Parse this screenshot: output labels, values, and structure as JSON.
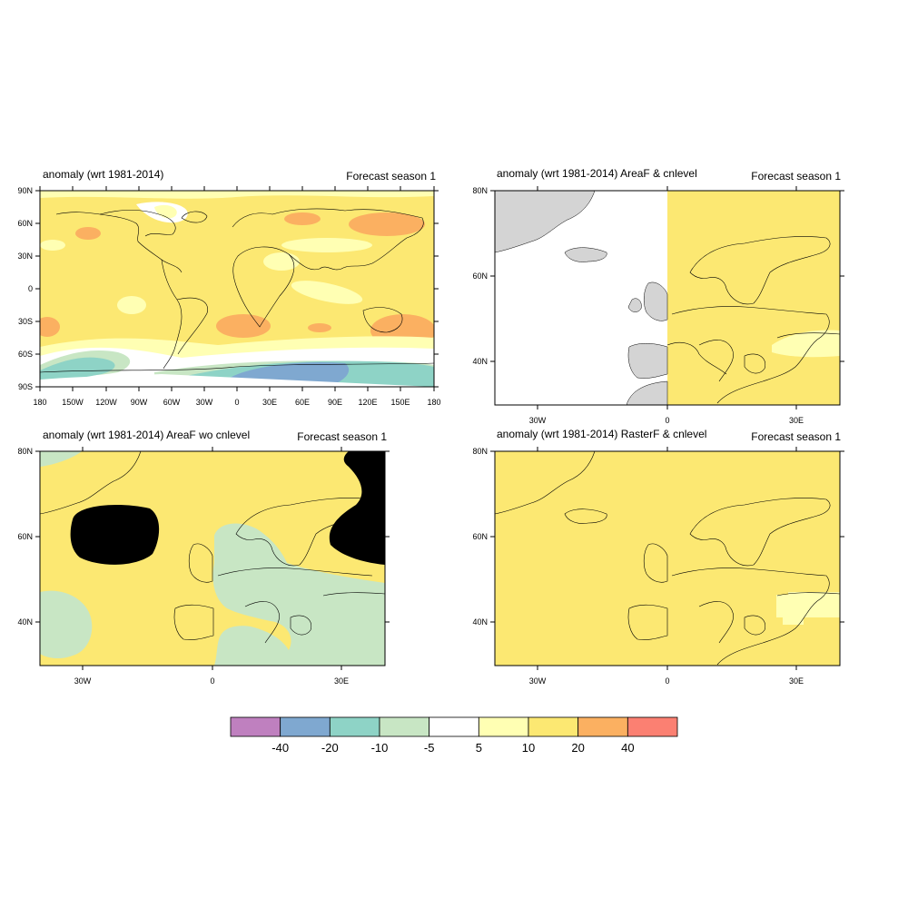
{
  "panels": [
    {
      "left_title": "anomaly (wrt 1981-2014)",
      "right_title": "Forecast season 1",
      "lat_labels": [
        "90N",
        "60N",
        "30N",
        "0",
        "30S",
        "60S",
        "90S"
      ],
      "lon_labels": [
        "180",
        "150W",
        "120W",
        "90W",
        "60W",
        "30W",
        "0",
        "30E",
        "60E",
        "90E",
        "120E",
        "150E",
        "180"
      ]
    },
    {
      "left_title": "anomaly (wrt 1981-2014) AreaF & cnlevel",
      "right_title": "Forecast season 1",
      "lat_labels": [
        "80N",
        "60N",
        "40N"
      ],
      "lon_labels": [
        "30W",
        "0",
        "30E"
      ]
    },
    {
      "left_title": "anomaly (wrt 1981-2014) AreaF wo cnlevel",
      "right_title": "Forecast season 1",
      "lat_labels": [
        "80N",
        "60N",
        "40N"
      ],
      "lon_labels": [
        "30W",
        "0",
        "30E"
      ]
    },
    {
      "left_title": "anomaly (wrt 1981-2014) RasterF & cnlevel",
      "right_title": "Forecast season 1",
      "lat_labels": [
        "80N",
        "60N",
        "40N"
      ],
      "lon_labels": [
        "30W",
        "0",
        "30E"
      ]
    }
  ],
  "colorbar": {
    "colors": [
      "#bf80bf",
      "#7fa8d0",
      "#8ed3c6",
      "#c8e6c4",
      "#ffffff",
      "#ffffb3",
      "#fce872",
      "#fbb061",
      "#fb8072"
    ],
    "labels": [
      "-40",
      "-20",
      "-10",
      "-5",
      "5",
      "10",
      "20",
      "40"
    ]
  },
  "colors": {
    "land_gray": "#d4d4d4",
    "missing_black": "#000000"
  }
}
